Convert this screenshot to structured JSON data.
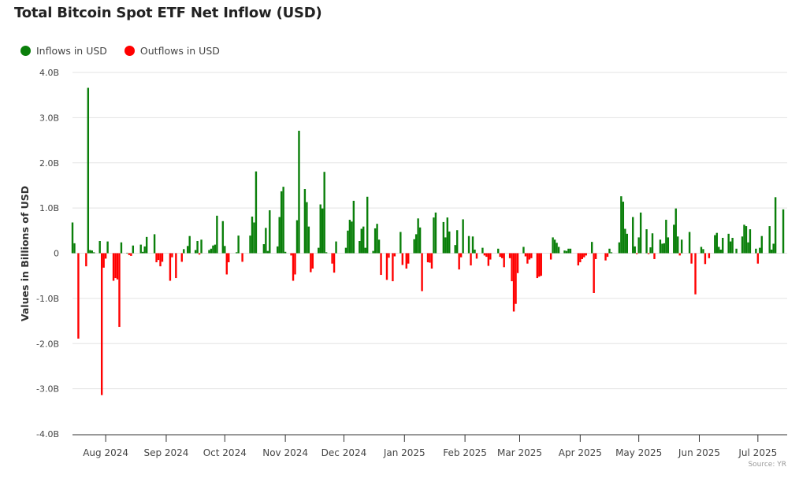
{
  "title": "Total Bitcoin Spot ETF Net Inflow (USD)",
  "legend": [
    {
      "label": "Inflows in USD",
      "color": "#0a7f0a"
    },
    {
      "label": "Outflows in USD",
      "color": "#ff0000"
    }
  ],
  "source": "Source: YR",
  "chart_data": {
    "type": "bar",
    "title": "Total Bitcoin Spot ETF Net Inflow (USD)",
    "xlabel": "",
    "ylabel": "Values in Billions of USD",
    "ylim": [
      -4,
      4
    ],
    "xlim": [
      "2024-07-15",
      "2025-07-16"
    ],
    "grid": true,
    "legend_position": "top-left",
    "y_ticks": [
      {
        "value": 4,
        "label": "4.0B"
      },
      {
        "value": 3,
        "label": "3.0B"
      },
      {
        "value": 2,
        "label": "2.0B"
      },
      {
        "value": 1,
        "label": "1.0B"
      },
      {
        "value": 0,
        "label": "0"
      },
      {
        "value": -1,
        "label": "-1.0B"
      },
      {
        "value": -2,
        "label": "-2.0B"
      },
      {
        "value": -3,
        "label": "-3.0B"
      },
      {
        "value": -4,
        "label": "-4.0B"
      }
    ],
    "x_ticks": [
      {
        "date": "2024-08-01",
        "label": "Aug 2024"
      },
      {
        "date": "2024-09-01",
        "label": "Sep 2024"
      },
      {
        "date": "2024-10-01",
        "label": "Oct 2024"
      },
      {
        "date": "2024-11-01",
        "label": "Nov 2024"
      },
      {
        "date": "2024-12-01",
        "label": "Dec 2024"
      },
      {
        "date": "2025-01-01",
        "label": "Jan 2025"
      },
      {
        "date": "2025-02-01",
        "label": "Feb 2025"
      },
      {
        "date": "2025-03-01",
        "label": "Mar 2025"
      },
      {
        "date": "2025-04-01",
        "label": "Apr 2025"
      },
      {
        "date": "2025-05-01",
        "label": "May 2025"
      },
      {
        "date": "2025-06-01",
        "label": "Jun 2025"
      },
      {
        "date": "2025-07-01",
        "label": "Jul 2025"
      }
    ],
    "unit": "billion USD",
    "points": [
      [
        "2024-07-15",
        0.68
      ],
      [
        "2024-07-16",
        0.22
      ],
      [
        "2024-07-18",
        -1.89
      ],
      [
        "2024-07-22",
        -0.29
      ],
      [
        "2024-07-23",
        3.66
      ],
      [
        "2024-07-24",
        0.07
      ],
      [
        "2024-07-25",
        0.06
      ],
      [
        "2024-07-26",
        0.02
      ],
      [
        "2024-07-29",
        0.27
      ],
      [
        "2024-07-30",
        -3.14
      ],
      [
        "2024-07-31",
        -0.32
      ],
      [
        "2024-08-01",
        -0.12
      ],
      [
        "2024-08-02",
        0.26
      ],
      [
        "2024-08-05",
        -0.61
      ],
      [
        "2024-08-06",
        -0.55
      ],
      [
        "2024-08-07",
        -0.58
      ],
      [
        "2024-08-08",
        -1.63
      ],
      [
        "2024-08-09",
        0.24
      ],
      [
        "2024-08-12",
        0.01
      ],
      [
        "2024-08-13",
        -0.04
      ],
      [
        "2024-08-14",
        -0.06
      ],
      [
        "2024-08-15",
        0.17
      ],
      [
        "2024-08-19",
        0.19
      ],
      [
        "2024-08-20",
        0.03
      ],
      [
        "2024-08-21",
        0.15
      ],
      [
        "2024-08-22",
        0.36
      ],
      [
        "2024-08-26",
        0.42
      ],
      [
        "2024-08-27",
        -0.2
      ],
      [
        "2024-08-28",
        -0.15
      ],
      [
        "2024-08-29",
        -0.29
      ],
      [
        "2024-08-30",
        -0.19
      ],
      [
        "2024-09-03",
        -0.61
      ],
      [
        "2024-09-04",
        -0.09
      ],
      [
        "2024-09-06",
        -0.55
      ],
      [
        "2024-09-09",
        -0.19
      ],
      [
        "2024-09-10",
        0.09
      ],
      [
        "2024-09-12",
        0.16
      ],
      [
        "2024-09-13",
        0.38
      ],
      [
        "2024-09-16",
        0.07
      ],
      [
        "2024-09-17",
        0.27
      ],
      [
        "2024-09-18",
        -0.03
      ],
      [
        "2024-09-19",
        0.3
      ],
      [
        "2024-09-23",
        0.07
      ],
      [
        "2024-09-24",
        0.1
      ],
      [
        "2024-09-25",
        0.17
      ],
      [
        "2024-09-26",
        0.19
      ],
      [
        "2024-09-27",
        0.83
      ],
      [
        "2024-09-30",
        0.71
      ],
      [
        "2024-10-01",
        0.16
      ],
      [
        "2024-10-02",
        -0.47
      ],
      [
        "2024-10-03",
        -0.2
      ],
      [
        "2024-10-07",
        0.02
      ],
      [
        "2024-10-08",
        0.39
      ],
      [
        "2024-10-10",
        -0.19
      ],
      [
        "2024-10-14",
        0.39
      ],
      [
        "2024-10-15",
        0.81
      ],
      [
        "2024-10-16",
        0.68
      ],
      [
        "2024-10-17",
        1.81
      ],
      [
        "2024-10-21",
        0.2
      ],
      [
        "2024-10-22",
        0.56
      ],
      [
        "2024-10-23",
        0.05
      ],
      [
        "2024-10-24",
        0.95
      ],
      [
        "2024-10-28",
        0.15
      ],
      [
        "2024-10-29",
        0.8
      ],
      [
        "2024-10-30",
        1.37
      ],
      [
        "2024-10-31",
        1.47
      ],
      [
        "2024-11-01",
        0.03
      ],
      [
        "2024-11-04",
        -0.05
      ],
      [
        "2024-11-05",
        -0.61
      ],
      [
        "2024-11-06",
        -0.47
      ],
      [
        "2024-11-07",
        0.73
      ],
      [
        "2024-11-08",
        2.71
      ],
      [
        "2024-11-11",
        1.42
      ],
      [
        "2024-11-12",
        1.13
      ],
      [
        "2024-11-13",
        0.59
      ],
      [
        "2024-11-14",
        -0.42
      ],
      [
        "2024-11-15",
        -0.34
      ],
      [
        "2024-11-18",
        0.12
      ],
      [
        "2024-11-19",
        1.08
      ],
      [
        "2024-11-20",
        0.99
      ],
      [
        "2024-11-21",
        1.8
      ],
      [
        "2024-11-22",
        0.02
      ],
      [
        "2024-11-25",
        -0.23
      ],
      [
        "2024-11-26",
        -0.43
      ],
      [
        "2024-11-27",
        0.26
      ],
      [
        "2024-12-02",
        0.12
      ],
      [
        "2024-12-03",
        0.5
      ],
      [
        "2024-12-04",
        0.74
      ],
      [
        "2024-12-05",
        0.7
      ],
      [
        "2024-12-06",
        1.16
      ],
      [
        "2024-12-09",
        0.27
      ],
      [
        "2024-12-10",
        0.54
      ],
      [
        "2024-12-11",
        0.59
      ],
      [
        "2024-12-12",
        0.12
      ],
      [
        "2024-12-13",
        1.25
      ],
      [
        "2024-12-16",
        0.05
      ],
      [
        "2024-12-17",
        0.55
      ],
      [
        "2024-12-18",
        0.65
      ],
      [
        "2024-12-19",
        0.3
      ],
      [
        "2024-12-20",
        -0.48
      ],
      [
        "2024-12-23",
        -0.59
      ],
      [
        "2024-12-24",
        -0.1
      ],
      [
        "2024-12-26",
        -0.62
      ],
      [
        "2024-12-27",
        -0.07
      ],
      [
        "2024-12-30",
        0.47
      ],
      [
        "2024-12-31",
        -0.26
      ],
      [
        "2025-01-02",
        -0.34
      ],
      [
        "2025-01-03",
        -0.23
      ],
      [
        "2025-01-06",
        0.31
      ],
      [
        "2025-01-07",
        0.42
      ],
      [
        "2025-01-08",
        0.77
      ],
      [
        "2025-01-09",
        0.57
      ],
      [
        "2025-01-10",
        -0.84
      ],
      [
        "2025-01-13",
        -0.2
      ],
      [
        "2025-01-14",
        -0.21
      ],
      [
        "2025-01-15",
        -0.34
      ],
      [
        "2025-01-16",
        0.79
      ],
      [
        "2025-01-17",
        0.9
      ],
      [
        "2025-01-21",
        0.69
      ],
      [
        "2025-01-22",
        0.35
      ],
      [
        "2025-01-23",
        0.79
      ],
      [
        "2025-01-24",
        0.48
      ],
      [
        "2025-01-27",
        0.18
      ],
      [
        "2025-01-28",
        0.51
      ],
      [
        "2025-01-29",
        -0.36
      ],
      [
        "2025-01-30",
        -0.09
      ],
      [
        "2025-01-31",
        0.75
      ],
      [
        "2025-02-03",
        0.38
      ],
      [
        "2025-02-04",
        -0.27
      ],
      [
        "2025-02-05",
        0.37
      ],
      [
        "2025-02-06",
        0.08
      ],
      [
        "2025-02-07",
        -0.12
      ],
      [
        "2025-02-10",
        0.12
      ],
      [
        "2025-02-11",
        -0.05
      ],
      [
        "2025-02-12",
        -0.08
      ],
      [
        "2025-02-13",
        -0.28
      ],
      [
        "2025-02-14",
        -0.14
      ],
      [
        "2025-02-18",
        0.1
      ],
      [
        "2025-02-19",
        -0.08
      ],
      [
        "2025-02-20",
        -0.11
      ],
      [
        "2025-02-21",
        -0.31
      ],
      [
        "2025-02-24",
        -0.11
      ],
      [
        "2025-02-25",
        -0.62
      ],
      [
        "2025-02-26",
        -1.29
      ],
      [
        "2025-02-27",
        -1.12
      ],
      [
        "2025-02-28",
        -0.44
      ],
      [
        "2025-03-03",
        0.14
      ],
      [
        "2025-03-04",
        -0.07
      ],
      [
        "2025-03-05",
        -0.23
      ],
      [
        "2025-03-06",
        -0.14
      ],
      [
        "2025-03-07",
        -0.11
      ],
      [
        "2025-03-10",
        -0.55
      ],
      [
        "2025-03-11",
        -0.52
      ],
      [
        "2025-03-12",
        -0.5
      ],
      [
        "2025-03-17",
        -0.14
      ],
      [
        "2025-03-18",
        0.35
      ],
      [
        "2025-03-19",
        0.3
      ],
      [
        "2025-03-20",
        0.23
      ],
      [
        "2025-03-21",
        0.14
      ],
      [
        "2025-03-24",
        0.06
      ],
      [
        "2025-03-25",
        0.05
      ],
      [
        "2025-03-26",
        0.1
      ],
      [
        "2025-03-27",
        0.1
      ],
      [
        "2025-03-31",
        -0.27
      ],
      [
        "2025-04-01",
        -0.2
      ],
      [
        "2025-04-02",
        -0.13
      ],
      [
        "2025-04-03",
        -0.09
      ],
      [
        "2025-04-04",
        -0.05
      ],
      [
        "2025-04-07",
        0.25
      ],
      [
        "2025-04-08",
        -0.88
      ],
      [
        "2025-04-09",
        -0.13
      ],
      [
        "2025-04-14",
        -0.16
      ],
      [
        "2025-04-15",
        -0.08
      ],
      [
        "2025-04-16",
        0.1
      ],
      [
        "2025-04-17",
        0.02
      ],
      [
        "2025-04-21",
        0.24
      ],
      [
        "2025-04-22",
        1.26
      ],
      [
        "2025-04-23",
        1.14
      ],
      [
        "2025-04-24",
        0.54
      ],
      [
        "2025-04-25",
        0.43
      ],
      [
        "2025-04-28",
        0.8
      ],
      [
        "2025-04-29",
        0.15
      ],
      [
        "2025-04-30",
        -0.02
      ],
      [
        "2025-05-01",
        0.35
      ],
      [
        "2025-05-02",
        0.9
      ],
      [
        "2025-05-05",
        0.53
      ],
      [
        "2025-05-06",
        -0.02
      ],
      [
        "2025-05-07",
        0.13
      ],
      [
        "2025-05-08",
        0.44
      ],
      [
        "2025-05-09",
        -0.13
      ],
      [
        "2025-05-12",
        0.3
      ],
      [
        "2025-05-13",
        0.21
      ],
      [
        "2025-05-14",
        0.22
      ],
      [
        "2025-05-15",
        0.74
      ],
      [
        "2025-05-16",
        0.35
      ],
      [
        "2025-05-19",
        0.63
      ],
      [
        "2025-05-20",
        0.99
      ],
      [
        "2025-05-21",
        0.37
      ],
      [
        "2025-05-22",
        -0.05
      ],
      [
        "2025-05-23",
        0.3
      ],
      [
        "2025-05-27",
        0.47
      ],
      [
        "2025-05-28",
        -0.23
      ],
      [
        "2025-05-30",
        -0.91
      ],
      [
        "2025-06-02",
        0.14
      ],
      [
        "2025-06-03",
        0.09
      ],
      [
        "2025-06-04",
        -0.24
      ],
      [
        "2025-06-06",
        -0.11
      ],
      [
        "2025-06-09",
        0.4
      ],
      [
        "2025-06-10",
        0.45
      ],
      [
        "2025-06-11",
        0.14
      ],
      [
        "2025-06-12",
        0.08
      ],
      [
        "2025-06-13",
        0.34
      ],
      [
        "2025-06-16",
        0.43
      ],
      [
        "2025-06-17",
        0.26
      ],
      [
        "2025-06-18",
        0.34
      ],
      [
        "2025-06-20",
        0.1
      ],
      [
        "2025-06-23",
        0.37
      ],
      [
        "2025-06-24",
        0.63
      ],
      [
        "2025-06-25",
        0.6
      ],
      [
        "2025-06-26",
        0.24
      ],
      [
        "2025-06-27",
        0.53
      ],
      [
        "2025-06-30",
        0.1
      ],
      [
        "2025-07-01",
        -0.23
      ],
      [
        "2025-07-02",
        0.12
      ],
      [
        "2025-07-03",
        0.38
      ],
      [
        "2025-07-07",
        0.6
      ],
      [
        "2025-07-08",
        0.08
      ],
      [
        "2025-07-09",
        0.21
      ],
      [
        "2025-07-10",
        1.24
      ],
      [
        "2025-07-14",
        0.97
      ]
    ]
  }
}
